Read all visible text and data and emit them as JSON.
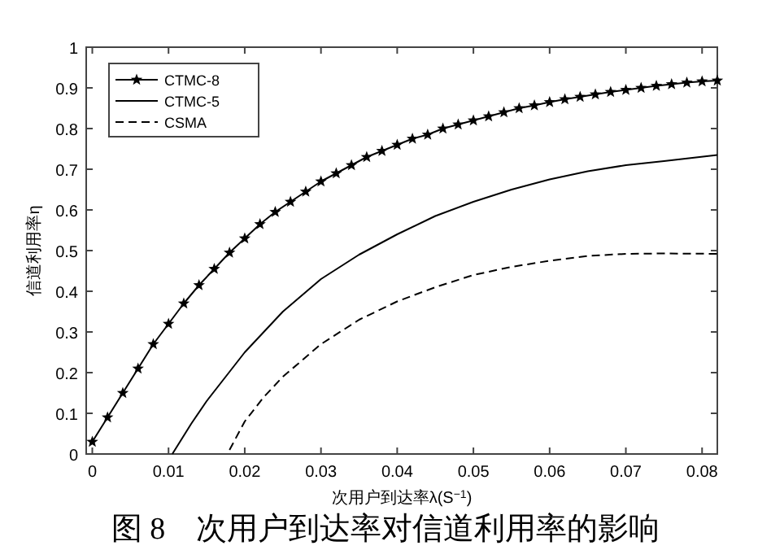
{
  "chart_data": {
    "type": "line",
    "xlabel": "次用户到达率λ(S$^{−1}$)",
    "ylabel": "信道利用率η",
    "annotations": [
      "图 8　次用户到达率对信道利用率的影响"
    ],
    "xlim": [
      -0.0008,
      0.082
    ],
    "ylim": [
      0,
      1
    ],
    "xticks": [
      0,
      0.01,
      0.02,
      0.03,
      0.04,
      0.05,
      0.06,
      0.07,
      0.08
    ],
    "yticks": [
      0,
      0.1,
      0.2,
      0.3,
      0.4,
      0.5,
      0.6,
      0.7,
      0.8,
      0.9,
      1
    ],
    "grid": false,
    "legend": "top left",
    "series": [
      {
        "name": "CTMC-8",
        "color": "#000000",
        "marker": "star",
        "line_style": "solid",
        "x": [
          0,
          0.002,
          0.004,
          0.006,
          0.008,
          0.01,
          0.012,
          0.014,
          0.016,
          0.018,
          0.02,
          0.022,
          0.024,
          0.026,
          0.028,
          0.03,
          0.032,
          0.034,
          0.036,
          0.038,
          0.04,
          0.042,
          0.044,
          0.046,
          0.048,
          0.05,
          0.052,
          0.054,
          0.056,
          0.058,
          0.06,
          0.062,
          0.064,
          0.066,
          0.068,
          0.07,
          0.072,
          0.074,
          0.076,
          0.078,
          0.08,
          0.082
        ],
        "values": [
          0.03,
          0.09,
          0.15,
          0.21,
          0.27,
          0.32,
          0.37,
          0.415,
          0.455,
          0.495,
          0.53,
          0.565,
          0.595,
          0.62,
          0.645,
          0.67,
          0.69,
          0.71,
          0.73,
          0.745,
          0.76,
          0.775,
          0.785,
          0.8,
          0.81,
          0.82,
          0.83,
          0.84,
          0.85,
          0.857,
          0.865,
          0.872,
          0.878,
          0.884,
          0.89,
          0.895,
          0.9,
          0.905,
          0.909,
          0.913,
          0.916,
          0.918
        ]
      },
      {
        "name": "CTMC-5",
        "color": "#000000",
        "marker": "none",
        "line_style": "solid",
        "x": [
          0.0105,
          0.013,
          0.015,
          0.0175,
          0.02,
          0.025,
          0.03,
          0.035,
          0.04,
          0.045,
          0.05,
          0.055,
          0.06,
          0.065,
          0.07,
          0.075,
          0.082
        ],
        "values": [
          0,
          0.075,
          0.13,
          0.19,
          0.25,
          0.35,
          0.43,
          0.49,
          0.54,
          0.585,
          0.62,
          0.65,
          0.675,
          0.695,
          0.71,
          0.72,
          0.735
        ]
      },
      {
        "name": "CSMA",
        "color": "#000000",
        "marker": "none",
        "line_style": "dashed",
        "x": [
          0.018,
          0.02,
          0.0225,
          0.025,
          0.03,
          0.035,
          0.04,
          0.045,
          0.05,
          0.055,
          0.06,
          0.065,
          0.07,
          0.075,
          0.082
        ],
        "values": [
          0.01,
          0.08,
          0.14,
          0.19,
          0.27,
          0.33,
          0.375,
          0.41,
          0.44,
          0.46,
          0.475,
          0.487,
          0.492,
          0.493,
          0.492
        ]
      }
    ]
  }
}
